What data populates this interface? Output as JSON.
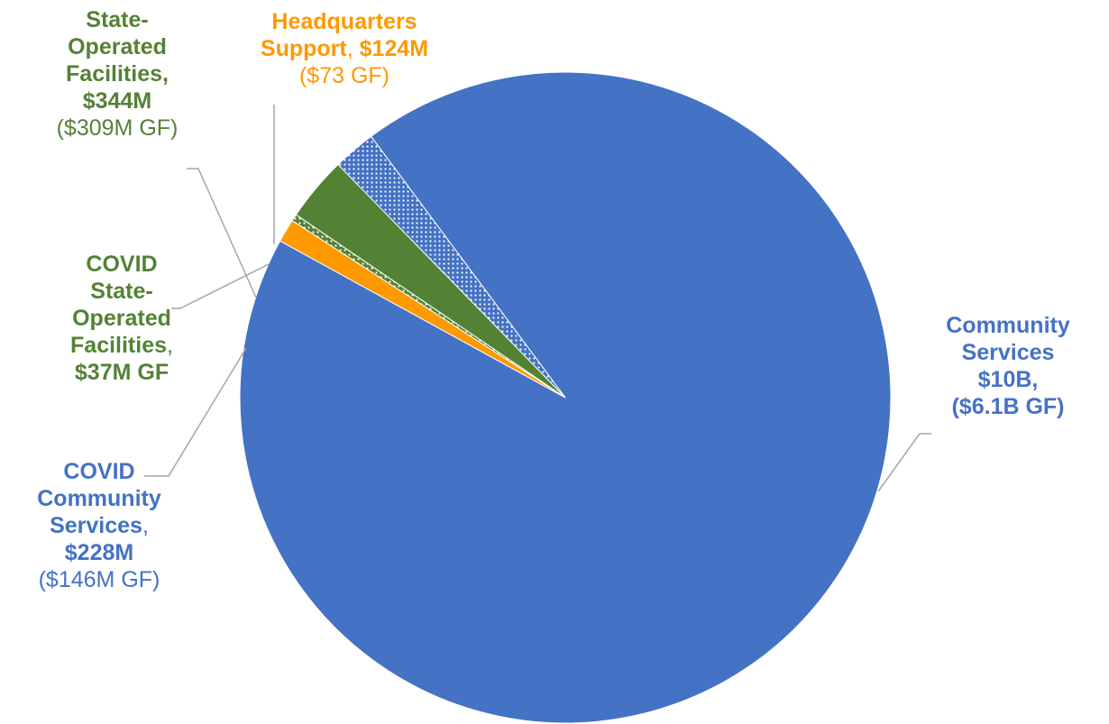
{
  "chart_data": {
    "type": "pie",
    "title": "",
    "slices": [
      {
        "key": "community",
        "name": "Community Services",
        "value": 10000,
        "unit": "$M",
        "color": "#4472C4",
        "pattern": "solid",
        "label_lines": [
          [
            {
              "text": "Community",
              "bold": true
            }
          ],
          [
            {
              "text": "Services",
              "bold": true
            }
          ],
          [
            {
              "text": "$10B,",
              "bold": true
            }
          ],
          [
            {
              "text": "($6.1B GF)",
              "bold": true
            }
          ]
        ]
      },
      {
        "key": "covid_community",
        "name": "COVID Community Services",
        "value": 228,
        "unit": "$M",
        "color": "#4472C4",
        "pattern": "dotted",
        "label_lines": [
          [
            {
              "text": "COVID",
              "bold": true
            }
          ],
          [
            {
              "text": "Community",
              "bold": true
            }
          ],
          [
            {
              "text": "Services",
              "bold": true
            },
            {
              "text": ",",
              "bold": false
            }
          ],
          [
            {
              "text": "$228M",
              "bold": true
            }
          ],
          [
            {
              "text": "($146M GF)",
              "bold": false
            }
          ]
        ]
      },
      {
        "key": "state_operated",
        "name": "State-Operated Facilities",
        "value": 344,
        "unit": "$M",
        "color": "#548235",
        "pattern": "solid",
        "label_lines": [
          [
            {
              "text": "State-",
              "bold": true
            }
          ],
          [
            {
              "text": "Operated",
              "bold": true
            }
          ],
          [
            {
              "text": "Facilities,",
              "bold": true
            }
          ],
          [
            {
              "text": "$344M",
              "bold": true
            }
          ],
          [
            {
              "text": "($309M GF)",
              "bold": false
            }
          ]
        ]
      },
      {
        "key": "covid_state",
        "name": "COVID State-Operated Facilities",
        "value": 37,
        "unit": "$M",
        "color": "#548235",
        "pattern": "dotted",
        "label_lines": [
          [
            {
              "text": "COVID",
              "bold": true
            }
          ],
          [
            {
              "text": "State-",
              "bold": true
            }
          ],
          [
            {
              "text": "Operated",
              "bold": true
            }
          ],
          [
            {
              "text": "Facilities",
              "bold": true
            },
            {
              "text": ",",
              "bold": false
            }
          ],
          [
            {
              "text": "$37M GF",
              "bold": true
            }
          ]
        ]
      },
      {
        "key": "headquarters",
        "name": "Headquarters Support",
        "value": 124,
        "unit": "$M",
        "color": "#FF9900",
        "pattern": "solid",
        "label_lines": [
          [
            {
              "text": "Headquarters",
              "bold": true
            }
          ],
          [
            {
              "text": "Support",
              "bold": true
            },
            {
              "text": ", ",
              "bold": false
            },
            {
              "text": "$124M",
              "bold": true
            }
          ],
          [
            {
              "text": "($73 GF)",
              "bold": false
            }
          ]
        ]
      }
    ]
  }
}
